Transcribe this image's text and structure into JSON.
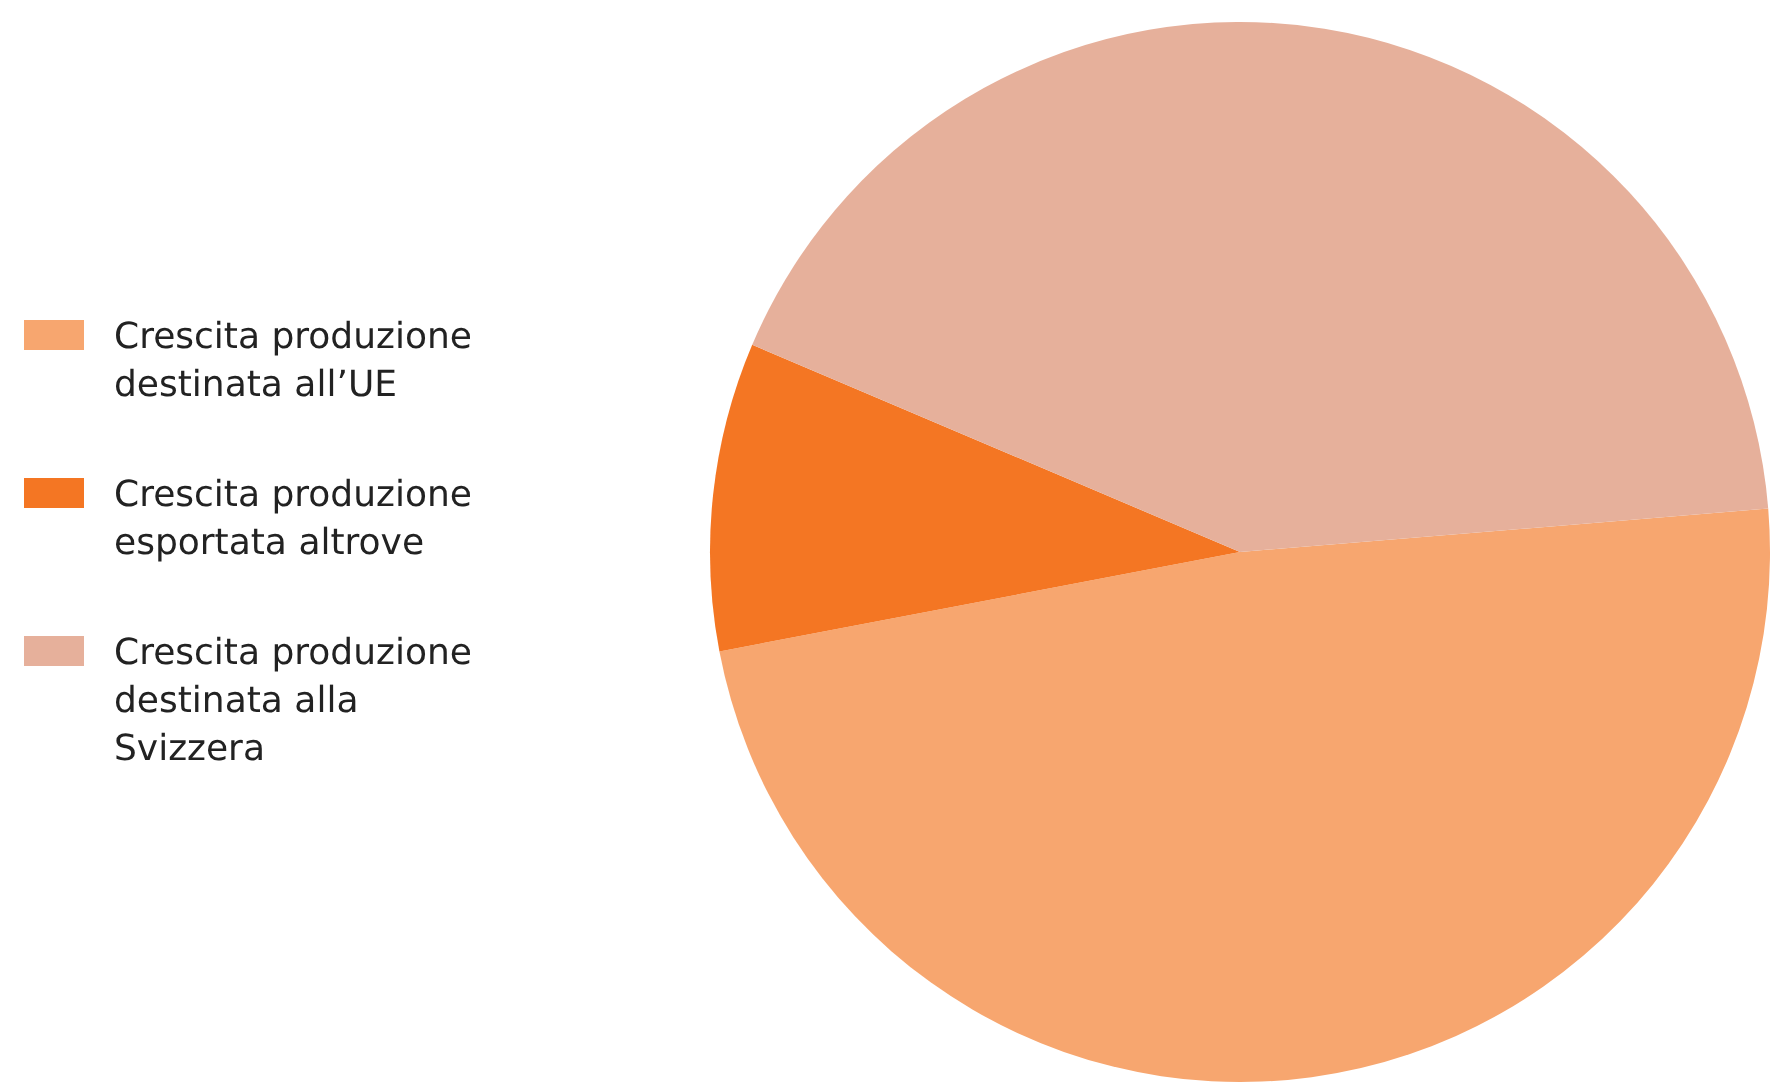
{
  "chart_data": {
    "type": "pie",
    "categories": [
      "Crescita produzione destinata all’UE",
      "Crescita produzione esportata altrove",
      "Crescita produzione destinata alla Svizzera"
    ],
    "values": [
      48.3,
      9.4,
      42.3
    ],
    "colors": [
      "#f7a66f",
      "#f47623",
      "#e6b09b"
    ],
    "legend": "left"
  }
}
